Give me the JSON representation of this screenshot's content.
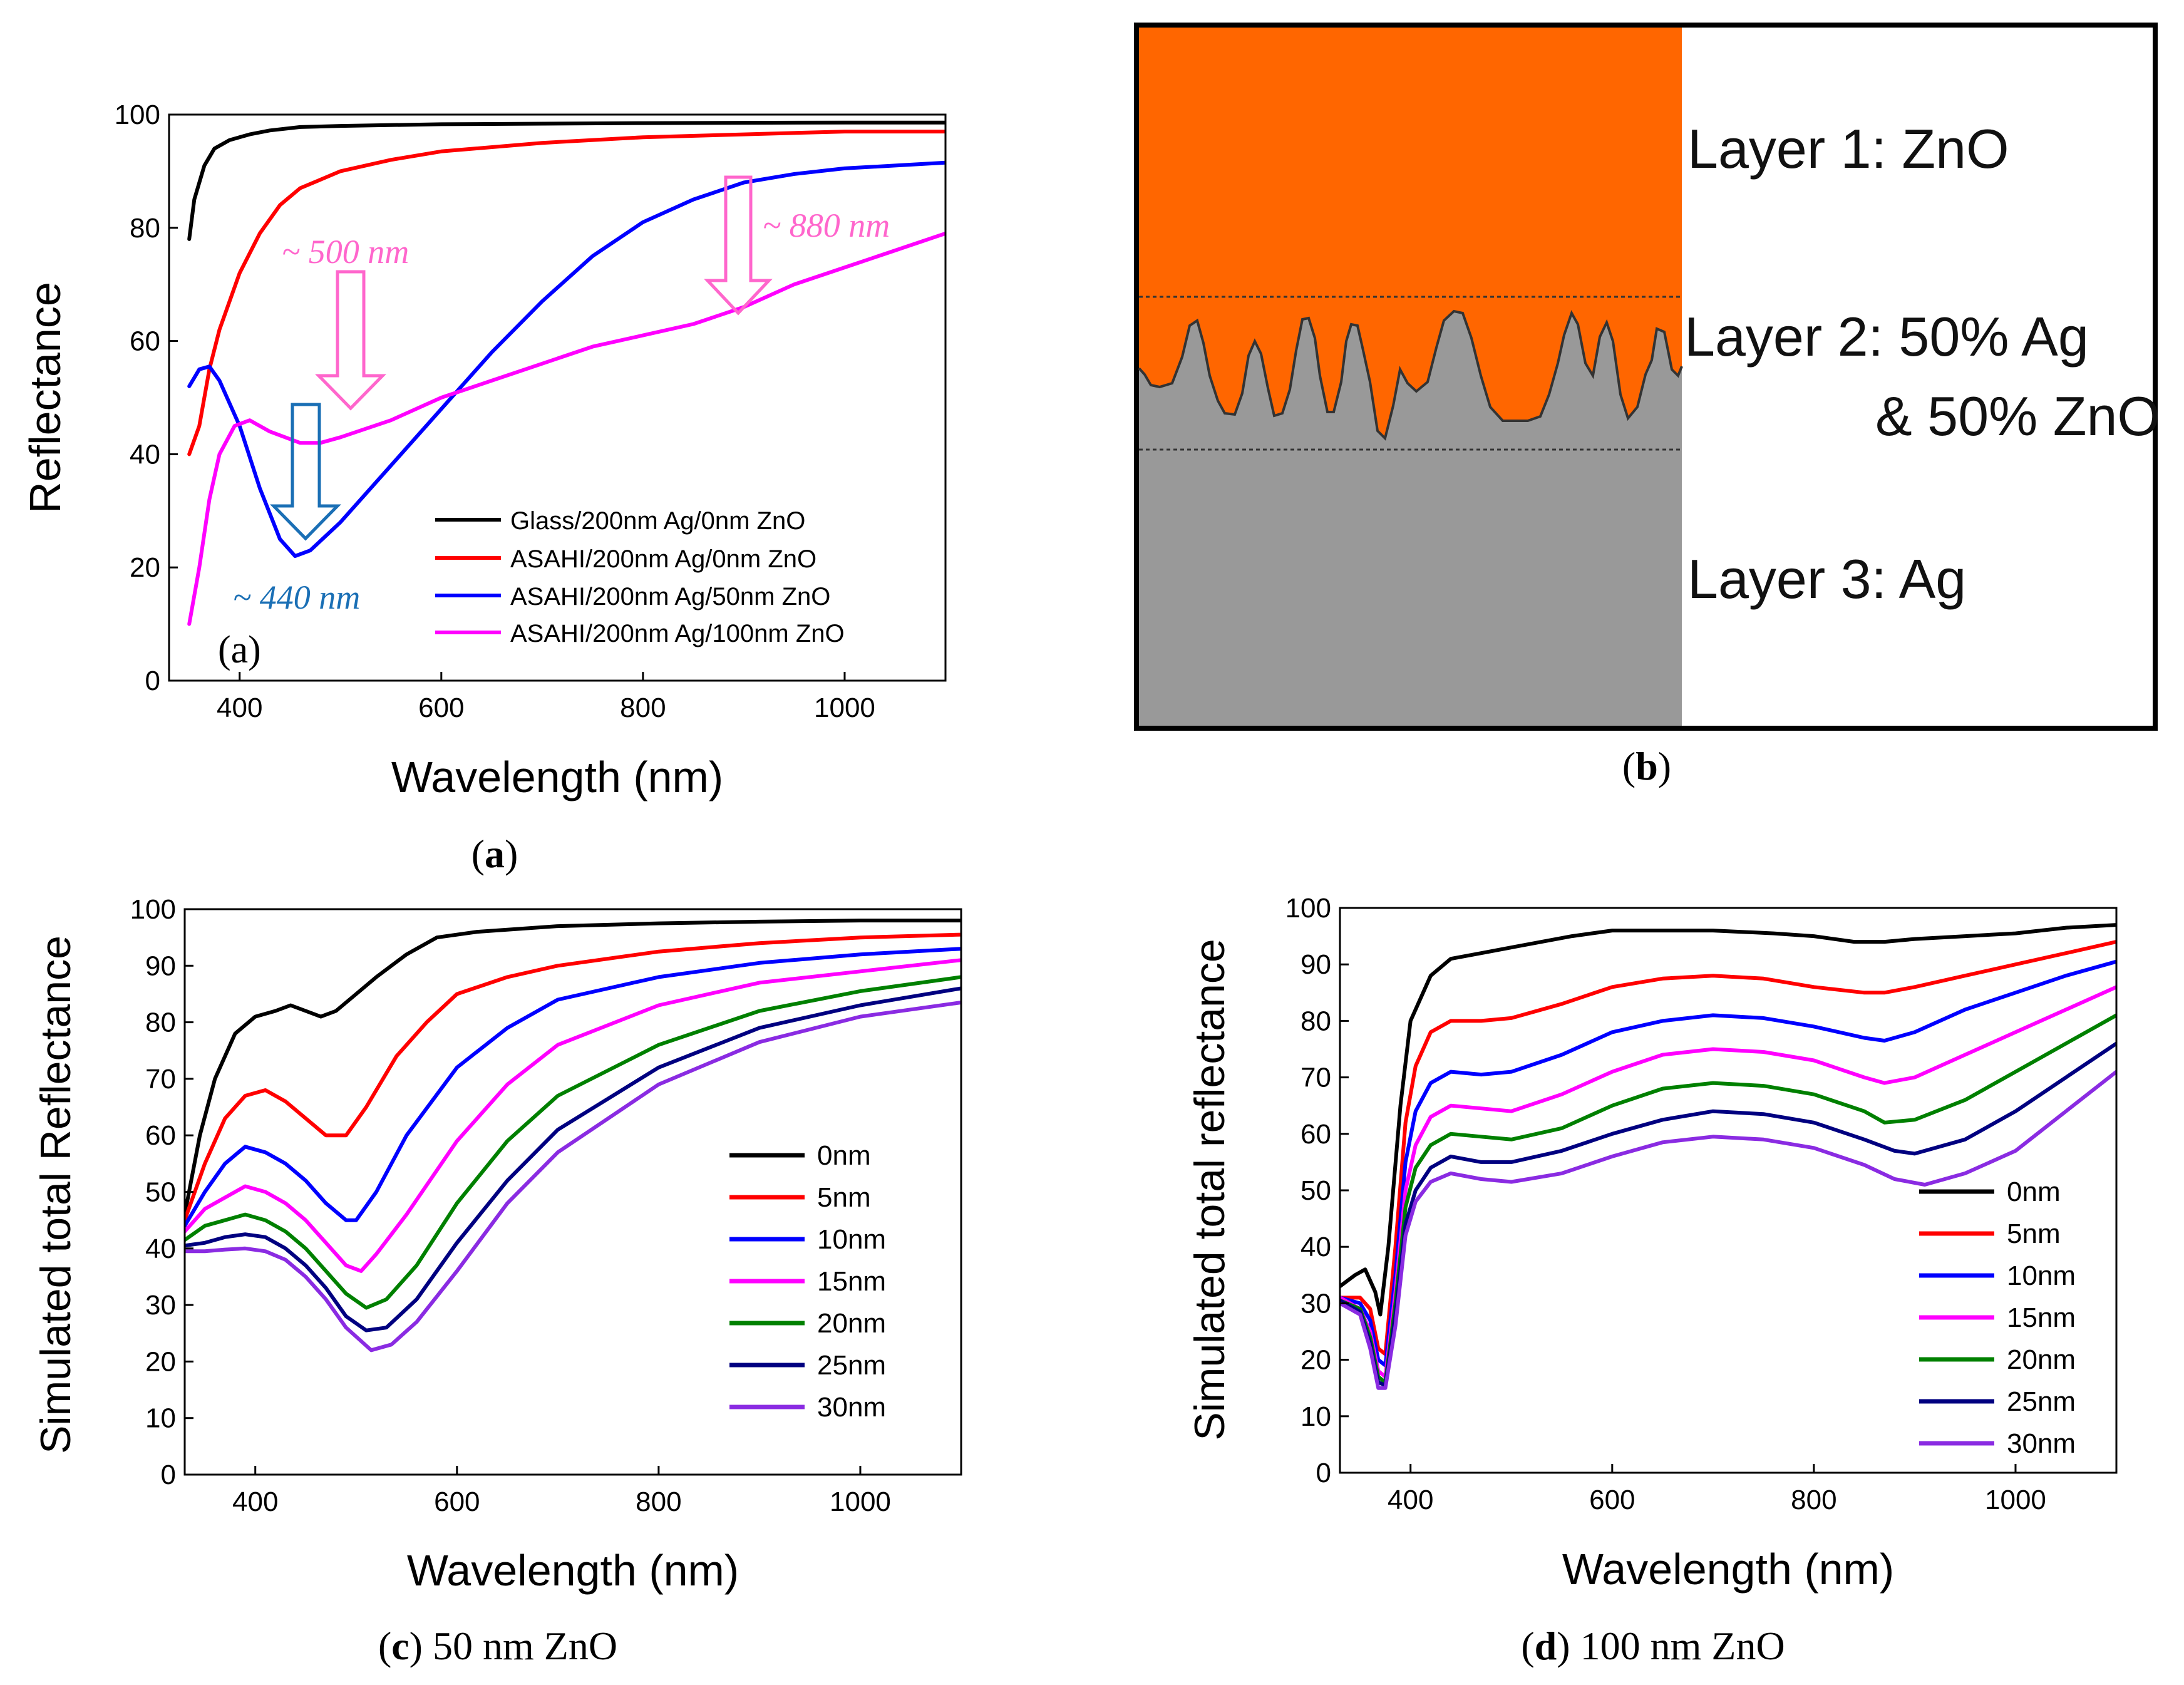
{
  "colors": {
    "black": "#000000",
    "red": "#ff0000",
    "blue": "#0000ff",
    "magenta": "#ff00ff",
    "green": "#008000",
    "navy": "#000080",
    "violet": "#8a2be2",
    "pink_arrow": "#ff66cc",
    "blue_arrow": "#1a6fb5",
    "zno": "#ff6600",
    "ag": "#999999"
  },
  "chart_data": [
    {
      "id": "a",
      "type": "line",
      "panel_label": "(a)",
      "caption_bold": "a",
      "xlabel": "Wavelength (nm)",
      "ylabel": "Reflectance",
      "xlim": [
        330,
        1100
      ],
      "ylim": [
        0,
        100
      ],
      "xticks": [
        400,
        600,
        800,
        1000
      ],
      "yticks": [
        0,
        20,
        40,
        60,
        80,
        100
      ],
      "legend_position": "bottom-right",
      "series": [
        {
          "name": "Glass/200nm Ag/0nm ZnO",
          "color": "#000000",
          "x": [
            350,
            355,
            365,
            375,
            390,
            410,
            430,
            460,
            500,
            600,
            800,
            1000,
            1100
          ],
          "y": [
            78,
            85,
            91,
            94,
            95.5,
            96.5,
            97.2,
            97.8,
            98,
            98.3,
            98.5,
            98.6,
            98.6
          ]
        },
        {
          "name": "ASAHI/200nm Ag/0nm ZnO",
          "color": "#ff0000",
          "x": [
            350,
            360,
            370,
            380,
            400,
            420,
            440,
            460,
            480,
            500,
            550,
            600,
            700,
            800,
            900,
            1000,
            1100
          ],
          "y": [
            40,
            45,
            55,
            62,
            72,
            79,
            84,
            87,
            88.5,
            90,
            92,
            93.5,
            95,
            96,
            96.5,
            97,
            97
          ]
        },
        {
          "name": "ASAHI/200nm Ag/50nm ZnO",
          "color": "#0000ff",
          "x": [
            350,
            360,
            370,
            380,
            400,
            420,
            440,
            455,
            470,
            500,
            550,
            600,
            650,
            700,
            750,
            800,
            850,
            900,
            950,
            1000,
            1050,
            1100
          ],
          "y": [
            52,
            55,
            55.5,
            53,
            45,
            34,
            25,
            22,
            23,
            28,
            38,
            48,
            58,
            67,
            75,
            81,
            85,
            88,
            89.5,
            90.5,
            91,
            91.5
          ]
        },
        {
          "name": "ASAHI/200nm Ag/100nm ZnO",
          "color": "#ff00ff",
          "x": [
            350,
            360,
            370,
            380,
            395,
            410,
            430,
            460,
            480,
            500,
            550,
            600,
            650,
            700,
            750,
            800,
            850,
            900,
            950,
            1000,
            1050,
            1100
          ],
          "y": [
            10,
            20,
            32,
            40,
            45,
            46,
            44,
            42,
            42,
            43,
            46,
            50,
            53,
            56,
            59,
            61,
            63,
            66,
            70,
            73,
            76,
            79
          ]
        }
      ],
      "annotations": [
        {
          "text": "~ 500 nm",
          "color": "#ff66cc",
          "at_x": 500,
          "arrow_to_y": 48
        },
        {
          "text": "~ 880 nm",
          "color": "#ff66cc",
          "at_x": 880,
          "arrow_to_y": 65
        },
        {
          "text": "~ 440 nm",
          "color": "#1a6fb5",
          "at_x": 455,
          "arrow_to_y": 24
        }
      ]
    },
    {
      "id": "c",
      "type": "line",
      "caption_bold": "c",
      "caption_rest": " 50 nm ZnO",
      "xlabel": "Wavelength (nm)",
      "ylabel": "Simulated total Reflectance",
      "xlim": [
        330,
        1100
      ],
      "ylim": [
        0,
        100
      ],
      "xticks": [
        400,
        600,
        800,
        1000
      ],
      "yticks": [
        0,
        10,
        20,
        30,
        40,
        50,
        60,
        70,
        80,
        90,
        100
      ],
      "legend_position": "right",
      "series": [
        {
          "name": "0nm",
          "color": "#000000",
          "x": [
            330,
            345,
            360,
            380,
            400,
            420,
            435,
            450,
            465,
            480,
            500,
            520,
            550,
            580,
            620,
            700,
            800,
            900,
            1000,
            1100
          ],
          "y": [
            46,
            60,
            70,
            78,
            81,
            82,
            83,
            82,
            81,
            82,
            85,
            88,
            92,
            95,
            96,
            97,
            97.5,
            97.8,
            98,
            98
          ]
        },
        {
          "name": "5nm",
          "color": "#ff0000",
          "x": [
            330,
            350,
            370,
            390,
            410,
            430,
            450,
            470,
            490,
            510,
            540,
            570,
            600,
            650,
            700,
            800,
            900,
            1000,
            1100
          ],
          "y": [
            45,
            55,
            63,
            67,
            68,
            66,
            63,
            60,
            60,
            65,
            74,
            80,
            85,
            88,
            90,
            92.5,
            94,
            95,
            95.5
          ]
        },
        {
          "name": "10nm",
          "color": "#0000ff",
          "x": [
            330,
            350,
            370,
            390,
            410,
            430,
            450,
            470,
            490,
            500,
            520,
            550,
            600,
            650,
            700,
            800,
            900,
            1000,
            1100
          ],
          "y": [
            44,
            50,
            55,
            58,
            57,
            55,
            52,
            48,
            45,
            45,
            50,
            60,
            72,
            79,
            84,
            88,
            90.5,
            92,
            93
          ]
        },
        {
          "name": "15nm",
          "color": "#ff00ff",
          "x": [
            330,
            350,
            370,
            390,
            410,
            430,
            450,
            470,
            490,
            505,
            520,
            550,
            600,
            650,
            700,
            800,
            900,
            1000,
            1100
          ],
          "y": [
            43,
            47,
            49,
            51,
            50,
            48,
            45,
            41,
            37,
            36,
            39,
            46,
            59,
            69,
            76,
            83,
            87,
            89,
            91
          ]
        },
        {
          "name": "20nm",
          "color": "#008000",
          "x": [
            330,
            350,
            370,
            390,
            410,
            430,
            450,
            470,
            490,
            510,
            530,
            560,
            600,
            650,
            700,
            800,
            900,
            1000,
            1100
          ],
          "y": [
            41.5,
            44,
            45,
            46,
            45,
            43,
            40,
            36,
            32,
            29.5,
            31,
            37,
            48,
            59,
            67,
            76,
            82,
            85.5,
            88
          ]
        },
        {
          "name": "25nm",
          "color": "#000080",
          "x": [
            330,
            350,
            370,
            390,
            410,
            430,
            450,
            470,
            490,
            510,
            530,
            560,
            600,
            650,
            700,
            800,
            900,
            1000,
            1100
          ],
          "y": [
            40.5,
            41,
            42,
            42.5,
            42,
            40,
            37,
            33,
            28,
            25.5,
            26,
            31,
            41,
            52,
            61,
            72,
            79,
            83,
            86
          ]
        },
        {
          "name": "30nm",
          "color": "#8a2be2",
          "x": [
            330,
            350,
            370,
            390,
            410,
            430,
            450,
            470,
            490,
            515,
            535,
            560,
            600,
            650,
            700,
            800,
            900,
            1000,
            1100
          ],
          "y": [
            39.5,
            39.5,
            39.8,
            40,
            39.5,
            38,
            35,
            31,
            26,
            22,
            23,
            27,
            36,
            48,
            57,
            69,
            76.5,
            81,
            83.5
          ]
        }
      ]
    },
    {
      "id": "d",
      "type": "line",
      "caption_bold": "d",
      "caption_rest": " 100 nm ZnO",
      "xlabel": "Wavelength (nm)",
      "ylabel": "Simulated total reflectance",
      "xlim": [
        330,
        1100
      ],
      "ylim": [
        0,
        100
      ],
      "xticks": [
        400,
        600,
        800,
        1000
      ],
      "yticks": [
        0,
        10,
        20,
        30,
        40,
        50,
        60,
        70,
        80,
        90,
        100
      ],
      "legend_position": "bottom-right",
      "series": [
        {
          "name": "0nm",
          "color": "#000000",
          "x": [
            330,
            345,
            355,
            365,
            370,
            378,
            390,
            400,
            420,
            440,
            470,
            500,
            560,
            600,
            650,
            700,
            760,
            800,
            840,
            870,
            900,
            950,
            1000,
            1050,
            1100
          ],
          "y": [
            33,
            35,
            36,
            32,
            28,
            40,
            65,
            80,
            88,
            91,
            92,
            93,
            95,
            96,
            96,
            96,
            95.5,
            95,
            94,
            94,
            94.5,
            95,
            95.5,
            96.5,
            97
          ]
        },
        {
          "name": "5nm",
          "color": "#ff0000",
          "x": [
            330,
            350,
            360,
            368,
            375,
            385,
            395,
            405,
            420,
            440,
            470,
            500,
            550,
            600,
            650,
            700,
            750,
            800,
            850,
            870,
            900,
            950,
            1000,
            1050,
            1100
          ],
          "y": [
            31,
            31,
            29,
            22,
            21,
            40,
            62,
            72,
            78,
            80,
            80,
            80.5,
            83,
            86,
            87.5,
            88,
            87.5,
            86,
            85,
            85,
            86,
            88,
            90,
            92,
            94
          ]
        },
        {
          "name": "10nm",
          "color": "#0000ff",
          "x": [
            330,
            350,
            360,
            368,
            375,
            385,
            395,
            405,
            420,
            440,
            470,
            500,
            550,
            600,
            650,
            700,
            750,
            800,
            850,
            870,
            900,
            950,
            1000,
            1050,
            1100
          ],
          "y": [
            31,
            30,
            27,
            20,
            19,
            35,
            55,
            64,
            69,
            71,
            70.5,
            71,
            74,
            78,
            80,
            81,
            80.5,
            79,
            77,
            76.5,
            78,
            82,
            85,
            88,
            90.5
          ]
        },
        {
          "name": "15nm",
          "color": "#ff00ff",
          "x": [
            330,
            350,
            360,
            368,
            375,
            385,
            395,
            405,
            420,
            440,
            470,
            500,
            550,
            600,
            650,
            700,
            750,
            800,
            850,
            870,
            900,
            950,
            1000,
            1050,
            1100
          ],
          "y": [
            31,
            29,
            25,
            18,
            17,
            32,
            50,
            58,
            63,
            65,
            64.5,
            64,
            67,
            71,
            74,
            75,
            74.5,
            73,
            70,
            69,
            70,
            74,
            78,
            82,
            86
          ]
        },
        {
          "name": "20nm",
          "color": "#008000",
          "x": [
            330,
            350,
            360,
            368,
            375,
            385,
            395,
            405,
            420,
            440,
            470,
            500,
            550,
            600,
            650,
            700,
            750,
            800,
            850,
            870,
            900,
            950,
            1000,
            1050,
            1100
          ],
          "y": [
            30.5,
            29,
            24,
            17,
            16,
            30,
            47,
            54,
            58,
            60,
            59.5,
            59,
            61,
            65,
            68,
            69,
            68.5,
            67,
            64,
            62,
            62.5,
            66,
            71,
            76,
            81
          ]
        },
        {
          "name": "25nm",
          "color": "#000080",
          "x": [
            330,
            350,
            360,
            368,
            375,
            385,
            395,
            405,
            420,
            440,
            470,
            500,
            550,
            600,
            650,
            700,
            750,
            800,
            850,
            880,
            900,
            950,
            1000,
            1050,
            1100
          ],
          "y": [
            30.5,
            28.5,
            23,
            16,
            15.5,
            28,
            44,
            50,
            54,
            56,
            55,
            55,
            57,
            60,
            62.5,
            64,
            63.5,
            62,
            59,
            57,
            56.5,
            59,
            64,
            70,
            76
          ]
        },
        {
          "name": "30nm",
          "color": "#8a2be2",
          "x": [
            330,
            350,
            360,
            368,
            375,
            385,
            395,
            405,
            420,
            440,
            470,
            500,
            550,
            600,
            650,
            700,
            750,
            800,
            850,
            880,
            910,
            950,
            1000,
            1050,
            1100
          ],
          "y": [
            30,
            28,
            22,
            15,
            15,
            26,
            42,
            48,
            51.5,
            53,
            52,
            51.5,
            53,
            56,
            58.5,
            59.5,
            59,
            57.5,
            54.5,
            52,
            51,
            53,
            57,
            64,
            71
          ]
        }
      ]
    }
  ],
  "layers": {
    "caption_bold": "b",
    "layer1": "Layer 1: ZnO",
    "layer2_line1": "Layer 2: 50% Ag",
    "layer2_line2": "& 50% ZnO",
    "layer3": "Layer 3: Ag"
  }
}
